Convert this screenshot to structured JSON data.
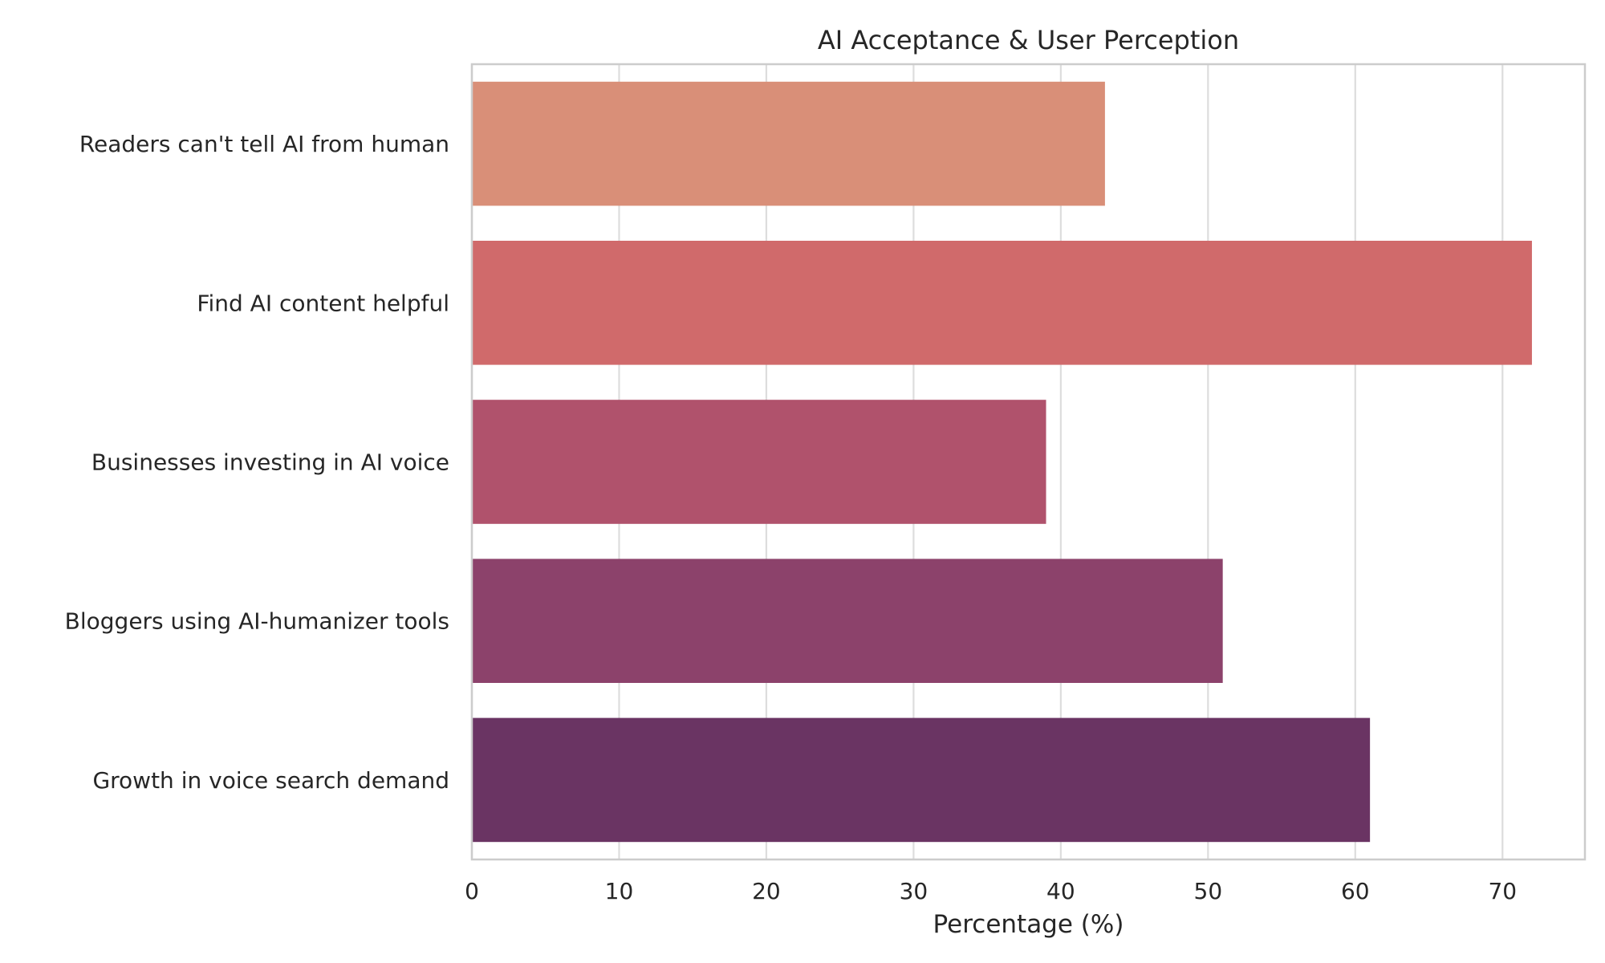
{
  "chart_data": {
    "type": "bar",
    "orientation": "horizontal",
    "title": "AI Acceptance & User Perception",
    "xlabel": "Percentage (%)",
    "ylabel": "",
    "xlim": [
      0,
      75.6
    ],
    "xticks": [
      0,
      10,
      20,
      30,
      40,
      50,
      60,
      70
    ],
    "grid": true,
    "categories": [
      "Readers can't tell AI from human",
      "Find AI content helpful",
      "Businesses investing in AI voice",
      "Bloggers using AI-humanizer tools",
      "Growth in voice search demand"
    ],
    "values": [
      43,
      72,
      39,
      51,
      61
    ],
    "colors": [
      "#d98f78",
      "#d06a6b",
      "#b0526c",
      "#8c426b",
      "#6a3463"
    ],
    "grid_color": "#dddddd",
    "frame_color": "#cccccc"
  }
}
